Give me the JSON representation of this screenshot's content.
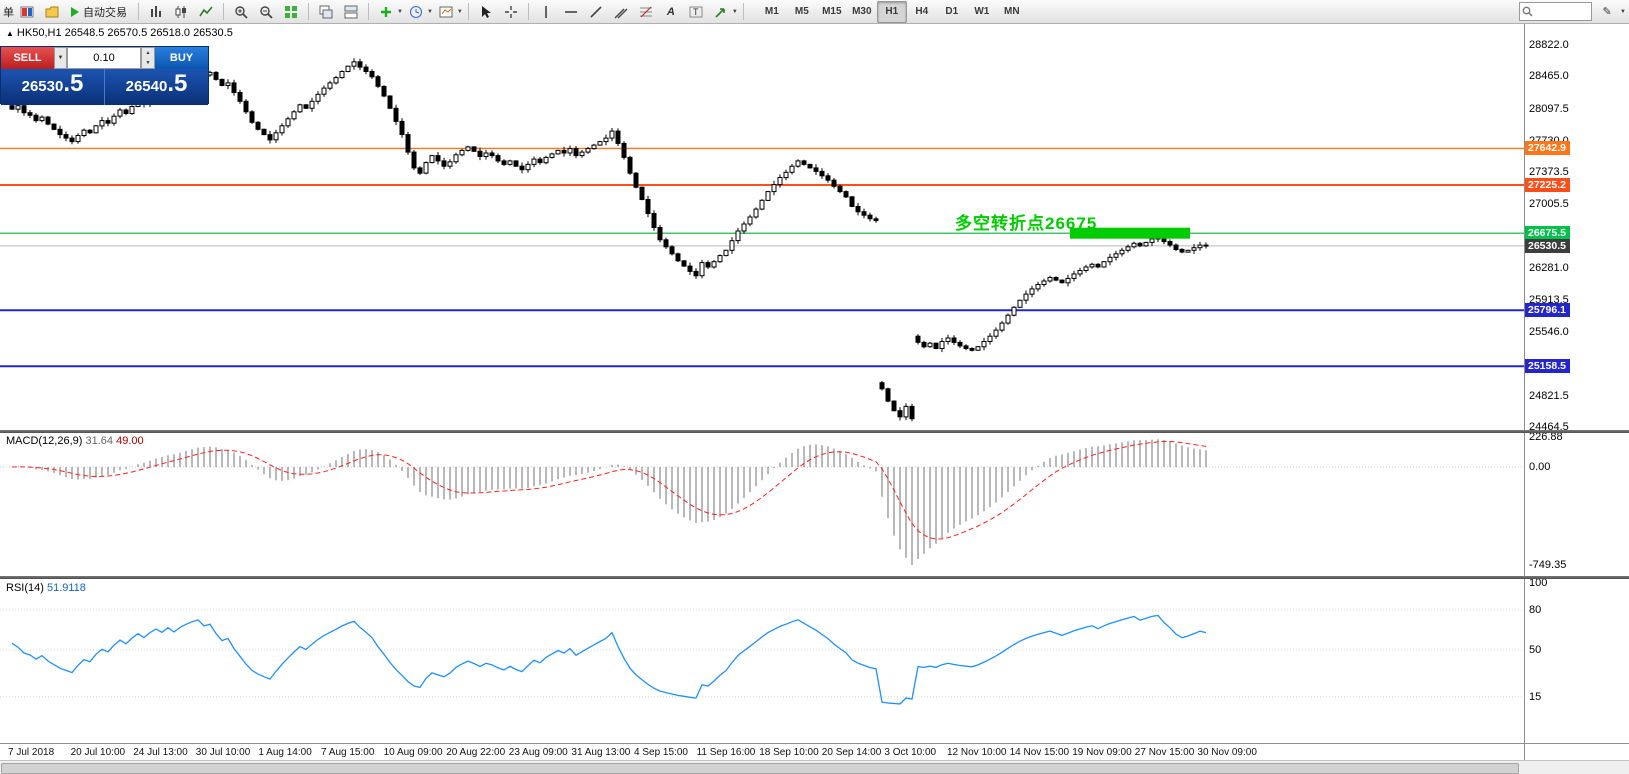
{
  "toolbar": {
    "left_truncated_label": "单",
    "auto_trading": "自动交易",
    "timeframes": [
      "M1",
      "M5",
      "M15",
      "M30",
      "H1",
      "H4",
      "D1",
      "W1",
      "MN"
    ],
    "active_timeframe": "H1"
  },
  "window": {
    "symbol_title": "HK50,H1  26548.5 26570.5 26518.0 26530.5"
  },
  "trade_panel": {
    "sell_label": "SELL",
    "buy_label": "BUY",
    "volume": "0.10",
    "sell_price_main": "26530",
    "sell_price_big": ".5",
    "buy_price_main": "26540",
    "buy_price_big": ".5"
  },
  "annotation": {
    "text": "多空转折点26675",
    "color": "#00cc00",
    "box_color": "#00cc00"
  },
  "price_axis": {
    "ticks": [
      "28822.0",
      "28465.0",
      "28097.5",
      "27730.0",
      "27373.5",
      "27005.5",
      "26281.0",
      "25913.5",
      "25546.0",
      "24821.5",
      "24464.5"
    ],
    "badges": [
      {
        "label": "27642.9",
        "bg": "#ff7519",
        "fg": "#ffffff"
      },
      {
        "label": "27225.2",
        "bg": "#ff4f19",
        "fg": "#ffffff"
      },
      {
        "label": "26675.5",
        "bg": "#00c24a",
        "fg": "#ffffff"
      },
      {
        "label": "26530.5",
        "bg": "#3d3d3d",
        "fg": "#ffffff"
      },
      {
        "label": "25796.1",
        "bg": "#2525cc",
        "fg": "#ffffff"
      },
      {
        "label": "25158.5",
        "bg": "#2525cc",
        "fg": "#ffffff"
      }
    ]
  },
  "hlines": [
    {
      "price": 27642.9,
      "color": "#ff7519",
      "width": 1.4
    },
    {
      "price": 27225.2,
      "color": "#ff4f19",
      "width": 2
    },
    {
      "price": 26675.5,
      "color": "#00b33c",
      "width": 1.2
    },
    {
      "price": 26530.5,
      "color": "#bbbbbb",
      "width": 1
    },
    {
      "price": 25796.1,
      "color": "#2525cc",
      "width": 2
    },
    {
      "price": 25158.5,
      "color": "#2525cc",
      "width": 2
    }
  ],
  "macd": {
    "name": "MACD(12,26,9)",
    "value_main": "31.64",
    "value_signal": "49.00",
    "axis": [
      "226.88",
      "0.00",
      "-749.35"
    ]
  },
  "rsi": {
    "name": "RSI(14)",
    "value": "51.9118",
    "axis": [
      "100",
      "80",
      "50",
      "15"
    ],
    "levels": [
      80,
      50,
      15
    ]
  },
  "time_axis": [
    "7 Jul 2018",
    "20 Jul 10:00",
    "24 Jul 13:00",
    "30 Jul 10:00",
    "1 Aug 14:00",
    "7 Aug 15:00",
    "10 Aug 09:00",
    "20 Aug 22:00",
    "23 Aug 09:00",
    "31 Aug 13:00",
    "4 Sep 15:00",
    "11 Sep 16:00",
    "18 Sep 10:00",
    "20 Sep 14:00",
    "3 Oct 10:00",
    "12 Nov 10:00",
    "14 Nov 15:00",
    "19 Nov 09:00",
    "27 Nov 15:00",
    "30 Nov 09:00"
  ],
  "chart_data": {
    "type": "candlestick",
    "symbol": "HK50",
    "timeframe": "H1",
    "title": "HK50,H1 26548.5 26570.5 26518.0 26530.5",
    "price_max": 28822.0,
    "price_min": 24464.5,
    "last_close": 26530.5,
    "closes": [
      28090,
      28130,
      28050,
      28020,
      27960,
      28000,
      27920,
      27860,
      27800,
      27760,
      27720,
      27790,
      27850,
      27820,
      27900,
      27960,
      27930,
      28010,
      28080,
      28040,
      28120,
      28190,
      28150,
      28230,
      28290,
      28260,
      28340,
      28300,
      28380,
      28440,
      28490,
      28530,
      28480,
      28510,
      28430,
      28360,
      28390,
      28280,
      28180,
      28060,
      27940,
      27860,
      27800,
      27740,
      27820,
      27900,
      27980,
      28060,
      28140,
      28100,
      28180,
      28260,
      28330,
      28390,
      28450,
      28520,
      28580,
      28630,
      28570,
      28520,
      28460,
      28350,
      28240,
      28100,
      27950,
      27800,
      27600,
      27420,
      27360,
      27480,
      27560,
      27500,
      27440,
      27490,
      27570,
      27620,
      27660,
      27610,
      27550,
      27590,
      27560,
      27500,
      27460,
      27500,
      27440,
      27400,
      27460,
      27520,
      27480,
      27540,
      27580,
      27620,
      27590,
      27640,
      27560,
      27600,
      27640,
      27680,
      27720,
      27760,
      27840,
      27700,
      27540,
      27360,
      27200,
      27060,
      26900,
      26740,
      26600,
      26520,
      26440,
      26360,
      26300,
      26240,
      26190,
      26340,
      26290,
      26350,
      26420,
      26480,
      26590,
      26700,
      26780,
      26860,
      26950,
      27050,
      27150,
      27230,
      27310,
      27370,
      27440,
      27500,
      27460,
      27420,
      27380,
      27330,
      27280,
      27210,
      27150,
      27090,
      26980,
      26920,
      26880,
      26840,
      26820,
      24900,
      24760,
      24650,
      24580,
      24700,
      24560,
      25430,
      25380,
      25420,
      25360,
      25440,
      25480,
      25430,
      25390,
      25360,
      25340,
      25380,
      25440,
      25500,
      25570,
      25650,
      25740,
      25830,
      25910,
      25980,
      26040,
      26090,
      26130,
      26170,
      26140,
      26110,
      26160,
      26210,
      26250,
      26290,
      26320,
      26290,
      26350,
      26400,
      26440,
      26480,
      26520,
      26560,
      26530,
      26570,
      26610,
      26630,
      26580,
      26540,
      26490,
      26460,
      26480,
      26510,
      26540,
      26530.5
    ],
    "indicators": [
      {
        "type": "MACD",
        "params": [
          12,
          26,
          9
        ],
        "last_values": [
          31.64,
          49.0
        ],
        "axis_range": [
          -749.35,
          226.88
        ]
      },
      {
        "type": "RSI",
        "params": [
          14
        ],
        "last_value": 51.9118,
        "axis_range": [
          0,
          100
        ]
      }
    ]
  }
}
